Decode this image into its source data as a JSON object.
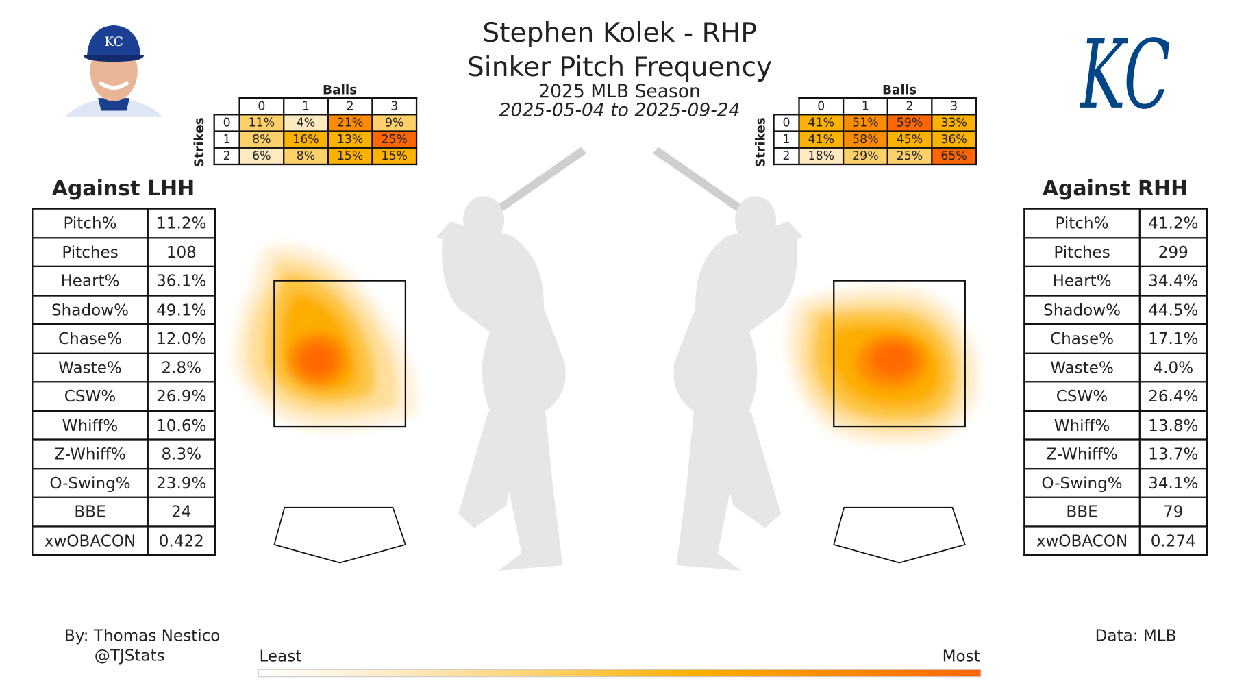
{
  "header": {
    "title": "Stephen Kolek - RHP",
    "subtitle": "Sinker Pitch Frequency",
    "season": "2025 MLB Season",
    "dates": "2025-05-04 to 2025-09-24"
  },
  "team_logo": "KC",
  "headshot_cap_logo": "KC",
  "chart_data": [
    {
      "type": "heatmap",
      "name": "count-lhh",
      "xlabel": "Balls",
      "ylabel": "Strikes",
      "x": [
        "0",
        "1",
        "2",
        "3"
      ],
      "y": [
        "0",
        "1",
        "2"
      ],
      "values": [
        [
          11,
          4,
          21,
          9
        ],
        [
          8,
          16,
          13,
          25
        ],
        [
          6,
          8,
          15,
          15
        ]
      ],
      "labels": [
        [
          "11%",
          "4%",
          "21%",
          "9%"
        ],
        [
          "8%",
          "16%",
          "13%",
          "25%"
        ],
        [
          "6%",
          "8%",
          "15%",
          "15%"
        ]
      ]
    },
    {
      "type": "heatmap",
      "name": "count-rhh",
      "xlabel": "Balls",
      "ylabel": "Strikes",
      "x": [
        "0",
        "1",
        "2",
        "3"
      ],
      "y": [
        "0",
        "1",
        "2"
      ],
      "values": [
        [
          41,
          51,
          59,
          33
        ],
        [
          41,
          58,
          45,
          36
        ],
        [
          18,
          29,
          25,
          65
        ]
      ],
      "labels": [
        [
          "41%",
          "51%",
          "59%",
          "33%"
        ],
        [
          "41%",
          "58%",
          "45%",
          "36%"
        ],
        [
          "18%",
          "29%",
          "25%",
          "65%"
        ]
      ]
    }
  ],
  "lhh": {
    "heading": "Against LHH",
    "stats": [
      {
        "label": "Pitch%",
        "value": "11.2%"
      },
      {
        "label": "Pitches",
        "value": "108"
      },
      {
        "label": "Heart%",
        "value": "36.1%"
      },
      {
        "label": "Shadow%",
        "value": "49.1%"
      },
      {
        "label": "Chase%",
        "value": "12.0%"
      },
      {
        "label": "Waste%",
        "value": "2.8%"
      },
      {
        "label": "CSW%",
        "value": "26.9%"
      },
      {
        "label": "Whiff%",
        "value": "10.6%"
      },
      {
        "label": "Z-Whiff%",
        "value": "8.3%"
      },
      {
        "label": "O-Swing%",
        "value": "23.9%"
      },
      {
        "label": "BBE",
        "value": "24"
      },
      {
        "label": "xwOBACON",
        "value": "0.422"
      }
    ]
  },
  "rhh": {
    "heading": "Against RHH",
    "stats": [
      {
        "label": "Pitch%",
        "value": "41.2%"
      },
      {
        "label": "Pitches",
        "value": "299"
      },
      {
        "label": "Heart%",
        "value": "34.4%"
      },
      {
        "label": "Shadow%",
        "value": "44.5%"
      },
      {
        "label": "Chase%",
        "value": "17.1%"
      },
      {
        "label": "Waste%",
        "value": "4.0%"
      },
      {
        "label": "CSW%",
        "value": "26.4%"
      },
      {
        "label": "Whiff%",
        "value": "13.8%"
      },
      {
        "label": "Z-Whiff%",
        "value": "13.7%"
      },
      {
        "label": "O-Swing%",
        "value": "34.1%"
      },
      {
        "label": "BBE",
        "value": "79"
      },
      {
        "label": "xwOBACON",
        "value": "0.274"
      }
    ]
  },
  "footer": {
    "author": "By: Thomas Nestico",
    "handle": "@TJStats",
    "source": "Data: MLB",
    "least": "Least",
    "most": "Most"
  },
  "colors": {
    "scale": [
      "#ffffff",
      "#fee9c0",
      "#fdd06a",
      "#fdb100",
      "#fe8b00",
      "#ff6600"
    ],
    "team": "#004687"
  }
}
